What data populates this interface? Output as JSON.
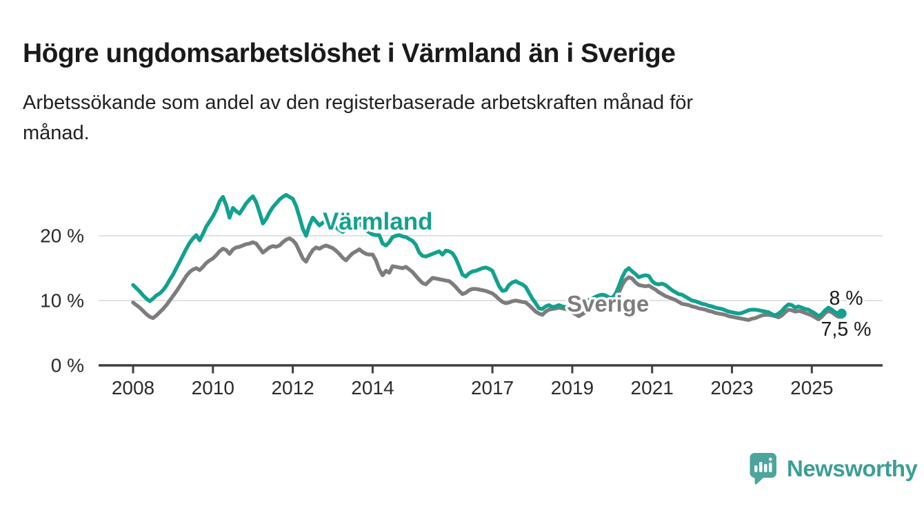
{
  "header": {
    "title": "Högre ungdomsarbetslöshet i Värmland än i Sverige",
    "subtitle_lines": [
      "Arbetssökande som andel av den registerbaserade arbetskraften månad för",
      "månad."
    ]
  },
  "colors": {
    "varmland_teal": "#12a18f",
    "sverige_gray": "#7d7d7d",
    "axis": "#3f3f3f",
    "grid": "#d9d9d9",
    "tick_text": "#2b2b2b",
    "annotation_text": "#1a1a1a",
    "logo_teal": "#4aa59d",
    "logo_text_teal": "#3b9e96"
  },
  "chart_data": {
    "type": "line",
    "title": "Högre ungdomsarbetslöshet i Värmland än i Sverige",
    "subtitle": "Arbetssökande som andel av den registerbaserade arbetskraften månad för månad.",
    "unit": "%",
    "frequency": "monthly",
    "x_start": "2008-01",
    "x_end": "2025-10",
    "x_tick_years": [
      2008,
      2010,
      2012,
      2014,
      2017,
      2019,
      2021,
      2023,
      2025
    ],
    "x_tick_labels": [
      "2008",
      "2010",
      "2012",
      "2014",
      "2017",
      "2019",
      "2021",
      "2023",
      "2025"
    ],
    "y_tick_values": [
      0,
      10,
      20
    ],
    "y_tick_labels": [
      "0 %",
      "10 %",
      "20 %"
    ],
    "ylim": [
      0,
      27
    ],
    "grid": "horizontal",
    "legend_position": "inline-labels",
    "series": [
      {
        "name": "Sverige",
        "label_text": "Sverige",
        "color": "#7d7d7d",
        "end_label": "7,5 %",
        "end_value": 7.5,
        "values": [
          9.7,
          9.3,
          8.9,
          8.4,
          7.9,
          7.5,
          7.3,
          7.7,
          8.2,
          8.7,
          9.3,
          10.0,
          10.7,
          11.4,
          12.2,
          13.0,
          13.8,
          14.4,
          14.8,
          15.0,
          14.7,
          15.2,
          15.8,
          16.2,
          16.5,
          17.0,
          17.6,
          18.0,
          17.8,
          17.2,
          17.9,
          18.2,
          18.3,
          18.5,
          18.7,
          18.8,
          19.0,
          18.8,
          18.1,
          17.4,
          17.8,
          18.2,
          18.4,
          18.3,
          18.5,
          19.0,
          19.4,
          19.6,
          19.3,
          18.7,
          17.6,
          16.5,
          16.0,
          17.0,
          17.8,
          18.2,
          18.0,
          18.3,
          18.5,
          18.3,
          18.1,
          17.7,
          17.2,
          16.6,
          16.2,
          16.8,
          17.3,
          17.6,
          17.9,
          17.5,
          17.2,
          17.1,
          17.1,
          16.2,
          14.8,
          13.9,
          14.6,
          14.3,
          15.3,
          15.2,
          15.1,
          15.0,
          15.2,
          14.8,
          14.4,
          13.8,
          13.2,
          12.7,
          12.5,
          13.0,
          13.5,
          13.4,
          13.3,
          13.2,
          13.1,
          13.0,
          12.6,
          12.1,
          11.5,
          11.0,
          11.2,
          11.6,
          11.8,
          11.8,
          11.7,
          11.6,
          11.5,
          11.3,
          11.1,
          10.7,
          10.2,
          9.8,
          9.6,
          9.7,
          9.9,
          10.0,
          9.9,
          9.8,
          9.7,
          9.3,
          8.8,
          8.3,
          8.0,
          7.8,
          8.3,
          8.6,
          8.7,
          8.8,
          8.9,
          8.8,
          8.7,
          8.5,
          8.2,
          7.9,
          7.6,
          7.9,
          8.2,
          8.5,
          8.8,
          9.0,
          9.2,
          9.3,
          9.3,
          9.2,
          9.4,
          10.0,
          11.2,
          12.4,
          13.2,
          13.6,
          13.4,
          12.8,
          12.4,
          12.3,
          12.2,
          12.3,
          12.0,
          11.7,
          11.3,
          11.0,
          10.7,
          10.5,
          10.3,
          10.1,
          9.8,
          9.5,
          9.4,
          9.3,
          9.1,
          9.0,
          8.8,
          8.7,
          8.6,
          8.4,
          8.3,
          8.1,
          8.0,
          7.9,
          7.8,
          7.6,
          7.5,
          7.4,
          7.3,
          7.2,
          7.1,
          7.0,
          7.2,
          7.3,
          7.5,
          7.7,
          7.8,
          7.8,
          7.7,
          7.6,
          7.4,
          7.7,
          8.2,
          8.6,
          8.5,
          8.3,
          8.4,
          8.3,
          8.1,
          7.9,
          7.7,
          7.4,
          7.1,
          7.5,
          8.1,
          8.4,
          8.2,
          7.8,
          7.5,
          7.5
        ]
      },
      {
        "name": "Värmland",
        "label_text": "Värmland",
        "color": "#12a18f",
        "end_label": "8 %",
        "end_value": 8.0,
        "end_marker": "dot",
        "values": [
          12.4,
          11.9,
          11.4,
          10.8,
          10.3,
          9.9,
          10.3,
          10.8,
          11.1,
          11.6,
          12.3,
          13.2,
          14.0,
          15.0,
          16.0,
          17.0,
          18.0,
          18.9,
          19.6,
          20.1,
          19.3,
          20.3,
          21.4,
          22.2,
          23.0,
          24.0,
          25.3,
          26.0,
          24.7,
          22.8,
          24.3,
          23.8,
          23.4,
          24.2,
          25.0,
          25.6,
          26.1,
          25.2,
          23.6,
          21.9,
          22.6,
          23.6,
          24.4,
          25.0,
          25.6,
          26.0,
          26.3,
          26.0,
          25.7,
          24.6,
          22.9,
          21.1,
          20.0,
          21.6,
          22.8,
          22.2,
          21.6,
          22.0,
          22.4,
          22.1,
          21.8,
          21.3,
          20.9,
          20.6,
          21.0,
          21.5,
          22.0,
          22.3,
          21.9,
          21.4,
          20.9,
          20.5,
          20.2,
          20.1,
          20.1,
          18.8,
          18.5,
          19.0,
          19.8,
          20.0,
          20.1,
          19.9,
          19.8,
          19.5,
          19.2,
          18.6,
          17.4,
          16.9,
          16.8,
          17.0,
          17.2,
          17.4,
          17.6,
          17.1,
          17.7,
          17.6,
          17.3,
          16.5,
          15.3,
          14.0,
          13.7,
          14.2,
          14.5,
          14.6,
          14.8,
          15.0,
          15.1,
          14.9,
          14.6,
          13.4,
          12.2,
          11.5,
          11.6,
          12.4,
          12.8,
          13.0,
          12.7,
          12.5,
          12.1,
          11.2,
          10.3,
          9.6,
          8.8,
          8.7,
          9.1,
          9.3,
          9.0,
          9.1,
          9.3,
          9.1,
          9.0,
          9.1,
          9.2,
          9.3,
          9.4,
          9.6,
          9.8,
          10.1,
          10.3,
          10.6,
          10.8,
          10.9,
          10.8,
          10.5,
          10.4,
          11.0,
          12.2,
          13.6,
          14.6,
          15.0,
          14.5,
          14.1,
          13.6,
          13.8,
          13.9,
          13.8,
          13.0,
          12.6,
          12.5,
          12.6,
          12.4,
          12.0,
          11.6,
          11.3,
          11.0,
          10.9,
          10.6,
          10.3,
          10.0,
          9.9,
          9.7,
          9.5,
          9.4,
          9.2,
          9.1,
          8.9,
          8.8,
          8.7,
          8.5,
          8.3,
          8.2,
          8.1,
          8.0,
          8.1,
          8.3,
          8.5,
          8.6,
          8.6,
          8.5,
          8.4,
          8.3,
          8.2,
          7.9,
          7.7,
          8.0,
          8.4,
          9.0,
          9.4,
          9.3,
          8.9,
          9.1,
          8.9,
          8.7,
          8.6,
          8.3,
          8.0,
          7.6,
          7.9,
          8.5,
          8.9,
          8.6,
          8.2,
          8.0,
          8.0
        ]
      }
    ]
  },
  "footer": {
    "brand": "Newsworthy"
  }
}
